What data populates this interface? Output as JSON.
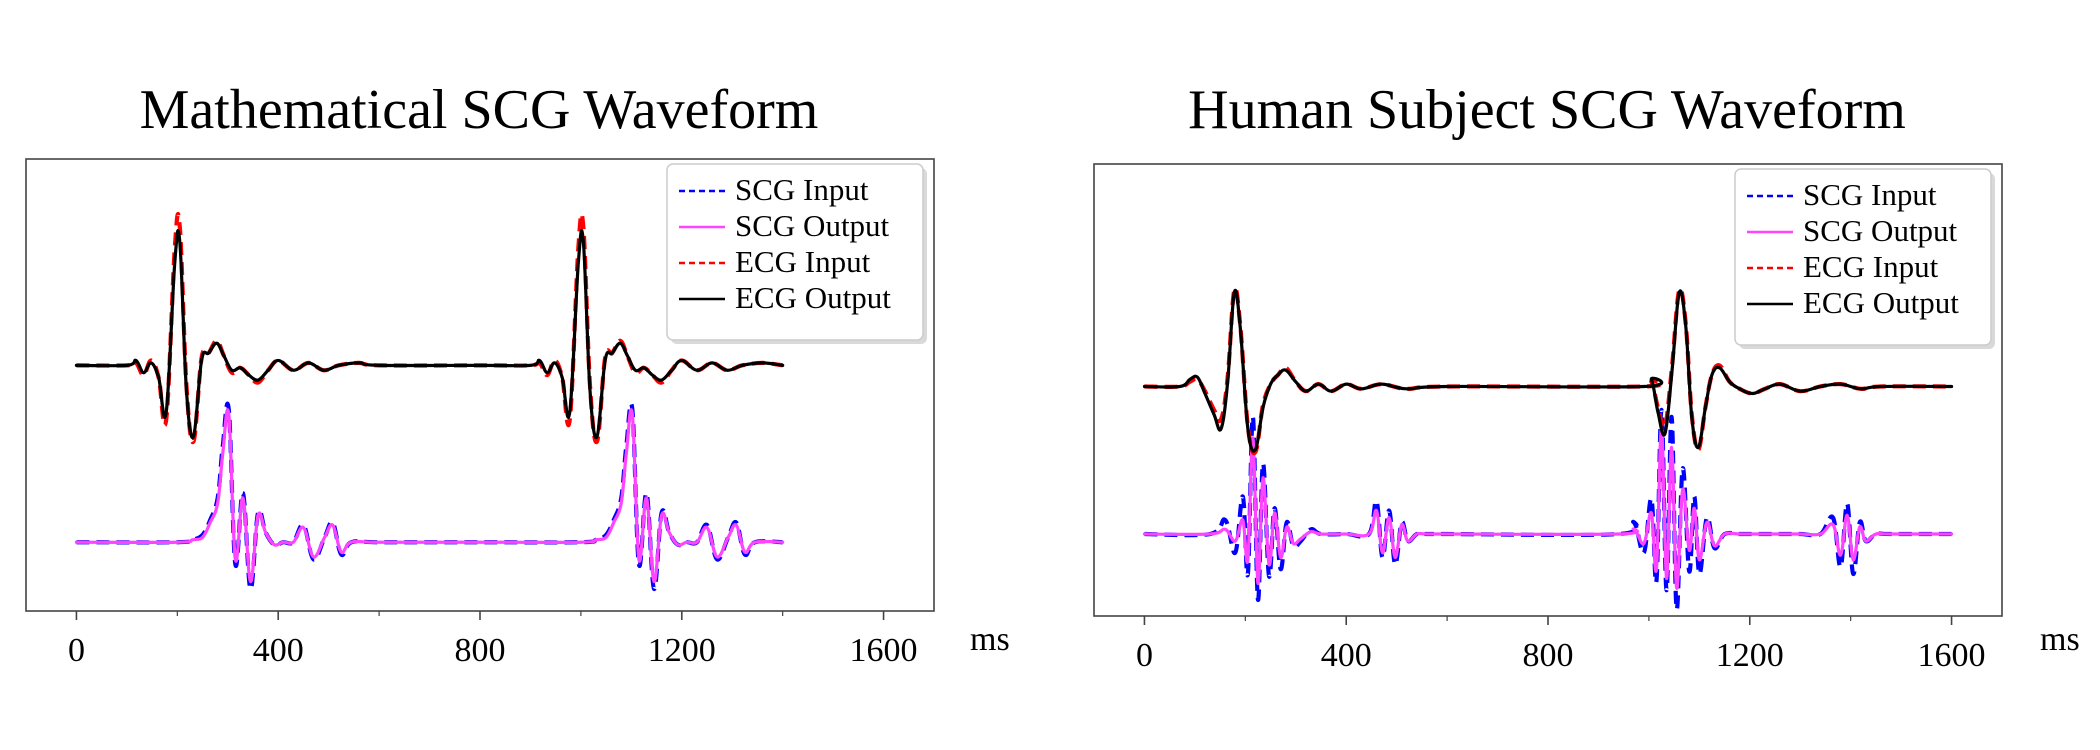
{
  "figure": {
    "background": "#ffffff"
  },
  "chart_data": [
    {
      "type": "line",
      "title": "Mathematical SCG Waveform",
      "xlabel": "ms",
      "ylabel": "",
      "xlim": [
        -100,
        1700
      ],
      "xticks": [
        0,
        400,
        800,
        1200,
        1600
      ],
      "grid": false,
      "legend_position": "top-right",
      "series": [
        {
          "name": "SCG Input",
          "color": "#0000ff",
          "dashed": true,
          "x": [
            0,
            200,
            230,
            250,
            265,
            280,
            290,
            302,
            315,
            330,
            345,
            360,
            375,
            392,
            410,
            430,
            450,
            470,
            492,
            508,
            525,
            545,
            600,
            1600
          ],
          "y": [
            -0.72,
            -0.72,
            -0.71,
            -0.69,
            -0.63,
            -0.54,
            -0.33,
            -0.18,
            -0.81,
            -0.52,
            -0.91,
            -0.6,
            -0.68,
            -0.73,
            -0.72,
            -0.72,
            -0.65,
            -0.79,
            -0.7,
            -0.64,
            -0.77,
            -0.72,
            -0.72,
            -0.72
          ],
          "pattern": {
            "period": 800,
            "repeat": 2
          }
        },
        {
          "name": "SCG Output",
          "color": "#ff44ff",
          "dashed": false,
          "x": [
            0,
            200,
            230,
            250,
            265,
            280,
            290,
            302,
            315,
            330,
            345,
            360,
            375,
            392,
            410,
            430,
            450,
            470,
            492,
            508,
            525,
            545,
            600,
            1600
          ],
          "y": [
            -0.72,
            -0.72,
            -0.71,
            -0.7,
            -0.64,
            -0.56,
            -0.36,
            -0.2,
            -0.79,
            -0.54,
            -0.88,
            -0.61,
            -0.68,
            -0.73,
            -0.72,
            -0.72,
            -0.66,
            -0.78,
            -0.7,
            -0.65,
            -0.76,
            -0.72,
            -0.72,
            -0.72
          ],
          "pattern": {
            "period": 800,
            "repeat": 2
          }
        },
        {
          "name": "ECG Input",
          "color": "#ff0000",
          "dashed": true,
          "x": [
            0,
            100,
            118,
            133,
            148,
            163,
            178,
            195,
            205,
            218,
            232,
            248,
            262,
            278,
            292,
            308,
            325,
            342,
            360,
            380,
            400,
            430,
            460,
            490,
            520,
            560,
            600,
            1600
          ],
          "y": [
            0.0,
            0.0,
            0.01,
            -0.04,
            0.02,
            -0.05,
            -0.22,
            0.48,
            0.56,
            -0.08,
            -0.31,
            0.03,
            0.05,
            0.1,
            0.04,
            -0.03,
            -0.01,
            -0.04,
            -0.07,
            -0.02,
            0.02,
            -0.02,
            0.01,
            -0.02,
            0.0,
            0.01,
            0.0,
            0.0
          ],
          "pattern": {
            "period": 800,
            "repeat": 2
          }
        },
        {
          "name": "ECG Output",
          "color": "#000000",
          "dashed": false,
          "x": [
            0,
            100,
            118,
            133,
            148,
            163,
            178,
            195,
            205,
            218,
            232,
            248,
            262,
            278,
            292,
            308,
            325,
            342,
            360,
            380,
            400,
            430,
            460,
            490,
            520,
            560,
            600,
            1600
          ],
          "y": [
            0.0,
            0.0,
            0.02,
            -0.03,
            0.01,
            -0.05,
            -0.19,
            0.42,
            0.5,
            -0.1,
            -0.29,
            0.02,
            0.05,
            0.09,
            0.04,
            -0.02,
            -0.01,
            -0.04,
            -0.06,
            -0.02,
            0.02,
            -0.02,
            0.01,
            -0.02,
            0.0,
            0.01,
            0.0,
            0.0
          ],
          "pattern": {
            "period": 800,
            "repeat": 2
          }
        }
      ],
      "ylim": [
        -1.0,
        0.84
      ]
    },
    {
      "type": "line",
      "title": "Human Subject SCG Waveform",
      "xlabel": "ms",
      "ylabel": "",
      "xlim": [
        -100,
        1700
      ],
      "xticks": [
        0,
        400,
        800,
        1200,
        1600
      ],
      "grid": false,
      "legend_position": "top-right",
      "series": [
        {
          "name": "SCG Input",
          "color": "#0000ff",
          "dashed": true,
          "x": [
            0,
            130,
            160,
            180,
            195,
            205,
            215,
            225,
            235,
            247,
            258,
            270,
            282,
            295,
            310,
            330,
            350,
            400,
            445,
            460,
            472,
            485,
            497,
            510,
            522,
            540,
            560,
            600,
            940,
            970,
            990,
            1005,
            1015,
            1025,
            1035,
            1045,
            1055,
            1067,
            1080,
            1090,
            1100,
            1115,
            1130,
            1150,
            1180,
            1220,
            1260,
            1300,
            1340,
            1365,
            1380,
            1393,
            1405,
            1418,
            1430,
            1450,
            1480,
            1600
          ],
          "y": [
            -0.63,
            -0.63,
            -0.57,
            -0.71,
            -0.47,
            -0.8,
            -0.13,
            -0.91,
            -0.33,
            -0.81,
            -0.52,
            -0.78,
            -0.58,
            -0.68,
            -0.66,
            -0.61,
            -0.63,
            -0.63,
            -0.63,
            -0.49,
            -0.73,
            -0.53,
            -0.76,
            -0.58,
            -0.66,
            -0.63,
            -0.63,
            -0.63,
            -0.63,
            -0.58,
            -0.71,
            -0.48,
            -0.83,
            -0.1,
            -0.87,
            -0.13,
            -0.95,
            -0.35,
            -0.79,
            -0.47,
            -0.8,
            -0.56,
            -0.69,
            -0.63,
            -0.63,
            -0.63,
            -0.63,
            -0.63,
            -0.63,
            -0.56,
            -0.77,
            -0.5,
            -0.8,
            -0.58,
            -0.66,
            -0.63,
            -0.63,
            -0.63
          ]
        },
        {
          "name": "SCG Output",
          "color": "#ff44ff",
          "dashed": false,
          "x": [
            0,
            130,
            160,
            180,
            195,
            205,
            215,
            225,
            235,
            247,
            258,
            270,
            282,
            295,
            310,
            330,
            350,
            400,
            445,
            460,
            472,
            485,
            497,
            510,
            522,
            540,
            560,
            600,
            940,
            970,
            990,
            1005,
            1015,
            1025,
            1035,
            1045,
            1055,
            1067,
            1080,
            1090,
            1100,
            1115,
            1130,
            1150,
            1180,
            1220,
            1260,
            1300,
            1340,
            1365,
            1380,
            1393,
            1405,
            1418,
            1430,
            1450,
            1480,
            1600
          ],
          "y": [
            -0.63,
            -0.63,
            -0.61,
            -0.66,
            -0.57,
            -0.74,
            -0.22,
            -0.84,
            -0.39,
            -0.76,
            -0.54,
            -0.73,
            -0.6,
            -0.67,
            -0.65,
            -0.62,
            -0.63,
            -0.63,
            -0.63,
            -0.53,
            -0.71,
            -0.56,
            -0.73,
            -0.59,
            -0.66,
            -0.63,
            -0.63,
            -0.63,
            -0.63,
            -0.61,
            -0.67,
            -0.54,
            -0.78,
            -0.18,
            -0.82,
            -0.26,
            -0.86,
            -0.44,
            -0.7,
            -0.52,
            -0.74,
            -0.58,
            -0.68,
            -0.63,
            -0.63,
            -0.63,
            -0.63,
            -0.63,
            -0.63,
            -0.59,
            -0.72,
            -0.55,
            -0.74,
            -0.6,
            -0.66,
            -0.63,
            -0.63,
            -0.63
          ]
        },
        {
          "name": "ECG Input",
          "color": "#ff0000",
          "dashed": true,
          "x": [
            0,
            70,
            90,
            105,
            120,
            138,
            152,
            165,
            178,
            190,
            205,
            220,
            235,
            250,
            265,
            280,
            300,
            320,
            345,
            370,
            400,
            430,
            470,
            520,
            600,
            990,
            1005,
            1018,
            1032,
            1046,
            1060,
            1073,
            1085,
            1098,
            1112,
            1125,
            1140,
            1160,
            1180,
            1205,
            1230,
            1260,
            1300,
            1340,
            1380,
            1420,
            1460,
            1600
          ],
          "y": [
            0.0,
            0.0,
            0.02,
            0.03,
            -0.02,
            -0.1,
            -0.14,
            0.04,
            0.41,
            0.26,
            -0.17,
            -0.28,
            -0.08,
            0.01,
            0.05,
            0.08,
            0.02,
            -0.02,
            0.01,
            -0.02,
            0.01,
            -0.01,
            0.01,
            -0.01,
            0.0,
            0.0,
            0.02,
            -0.09,
            -0.17,
            0.09,
            0.41,
            0.27,
            -0.12,
            -0.27,
            -0.09,
            0.05,
            0.09,
            0.02,
            -0.01,
            -0.03,
            -0.01,
            0.01,
            -0.02,
            0.0,
            0.01,
            -0.01,
            0.0,
            0.0
          ]
        },
        {
          "name": "ECG Output",
          "color": "#000000",
          "dashed": false,
          "x": [
            0,
            70,
            90,
            105,
            120,
            138,
            152,
            165,
            178,
            190,
            205,
            220,
            235,
            250,
            265,
            280,
            300,
            320,
            345,
            370,
            400,
            430,
            470,
            520,
            600,
            990,
            1005,
            1018,
            1032,
            1046,
            1060,
            1073,
            1085,
            1098,
            1112,
            1125,
            1140,
            1160,
            1180,
            1205,
            1230,
            1260,
            1300,
            1340,
            1380,
            1420,
            1460,
            1600
          ],
          "y": [
            0.0,
            0.0,
            0.03,
            0.04,
            -0.03,
            -0.12,
            -0.18,
            0.02,
            0.4,
            0.25,
            -0.18,
            -0.27,
            -0.09,
            0.01,
            0.05,
            0.07,
            0.02,
            -0.02,
            0.01,
            -0.02,
            0.01,
            -0.01,
            0.01,
            -0.01,
            0.0,
            0.0,
            0.03,
            -0.11,
            -0.2,
            0.07,
            0.4,
            0.26,
            -0.13,
            -0.26,
            -0.09,
            0.05,
            0.08,
            0.02,
            -0.01,
            -0.03,
            -0.01,
            0.01,
            -0.02,
            0.0,
            0.01,
            -0.01,
            0.0,
            0.0
          ]
        }
      ],
      "ylim": [
        -0.98,
        0.95
      ]
    }
  ]
}
